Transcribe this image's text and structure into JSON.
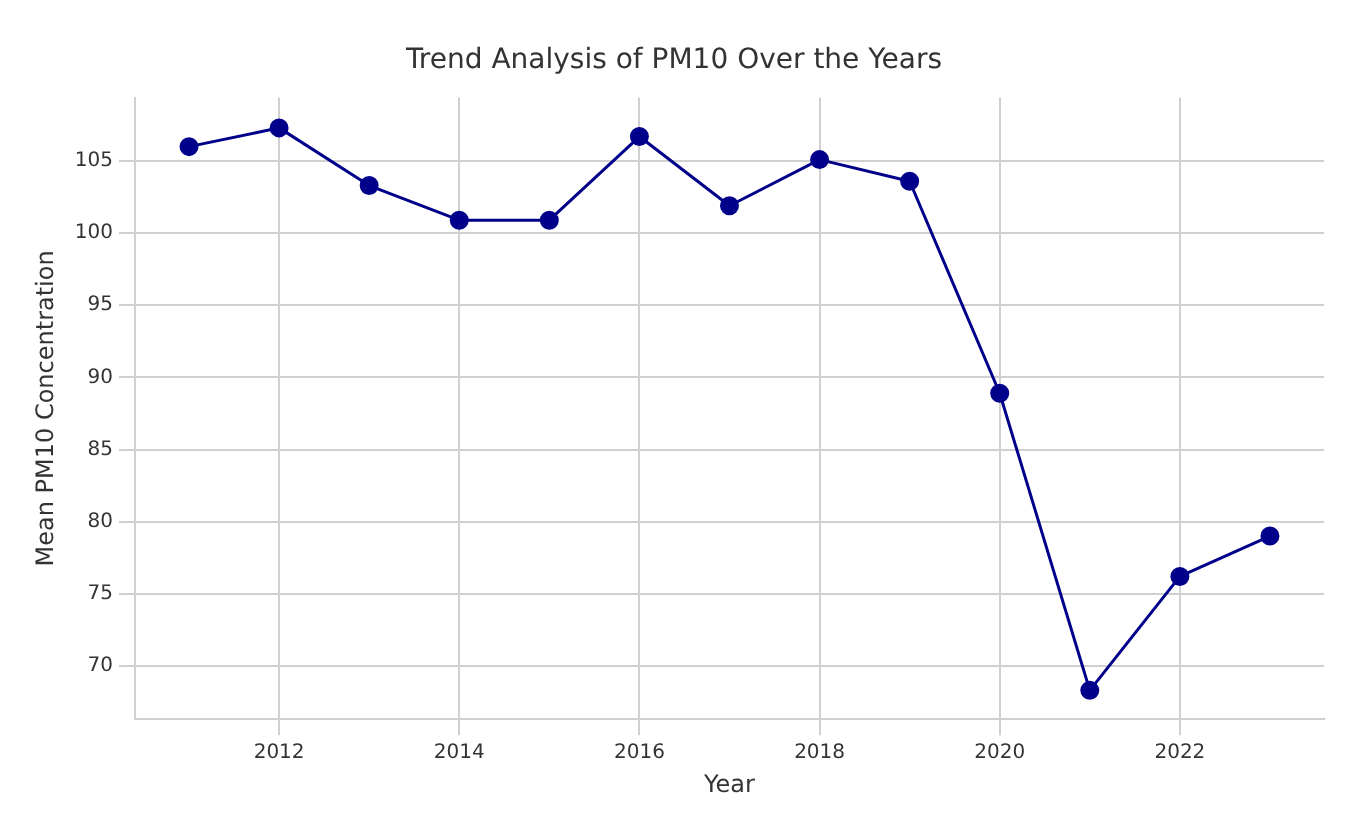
{
  "chart_data": {
    "type": "line",
    "title": "Trend Analysis of PM10 Over the Years",
    "xlabel": "Year",
    "ylabel": "Mean PM10 Concentration",
    "x": [
      2011,
      2012,
      2013,
      2014,
      2015,
      2016,
      2017,
      2018,
      2019,
      2020,
      2021,
      2022,
      2023
    ],
    "series": [
      {
        "color": "#00008b",
        "values": [
          106.0,
          107.3,
          103.3,
          100.9,
          100.9,
          106.7,
          101.9,
          105.1,
          103.6,
          88.9,
          68.3,
          76.2,
          79.0
        ]
      }
    ],
    "xlim": [
      2010.4,
      2023.6
    ],
    "xticks": [
      2012,
      2014,
      2016,
      2018,
      2020,
      2022
    ],
    "ylim": [
      66.3,
      109.4
    ],
    "yticks": [
      70,
      75,
      80,
      85,
      90,
      95,
      100,
      105
    ],
    "grid": true,
    "marker": "circle",
    "line_style": "solid",
    "legend": false
  }
}
